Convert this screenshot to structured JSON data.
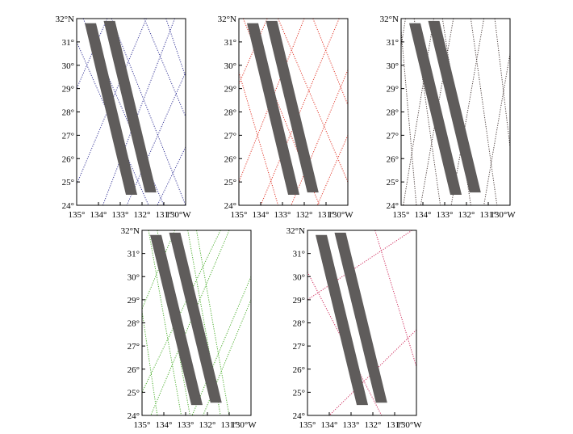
{
  "colors": {
    "swath": "#5f5c5b",
    "frame": "#000000"
  },
  "axes": {
    "lat_range": [
      24,
      32
    ],
    "lon_range": [
      135,
      130
    ],
    "lat_tick_labels": [
      "24°",
      "25°",
      "26°",
      "27°",
      "28°",
      "29°",
      "30°",
      "31°",
      "32°N"
    ],
    "lon_tick_labels": [
      "135°",
      "134°",
      "133°",
      "132°",
      "131°",
      "130°W"
    ]
  },
  "swaths": [
    {
      "name": "swath-west",
      "top": [
        134.37,
        31.8
      ],
      "bottom": [
        132.48,
        24.45
      ]
    },
    {
      "name": "swath-east",
      "top": [
        133.5,
        31.9
      ],
      "bottom": [
        131.6,
        24.55
      ]
    }
  ],
  "panels": [
    {
      "name": "panel-blue",
      "track_color": "#3a3a9a",
      "tracks": [
        [
          [
            135.0,
            31.0
          ],
          [
            131.7,
            24.0
          ]
        ],
        [
          [
            134.7,
            32.0
          ],
          [
            131.0,
            24.0
          ]
        ],
        [
          [
            133.4,
            32.0
          ],
          [
            130.0,
            24.0
          ]
        ],
        [
          [
            131.9,
            32.0
          ],
          [
            130.0,
            27.8
          ]
        ],
        [
          [
            130.9,
            32.0
          ],
          [
            130.0,
            29.5
          ]
        ],
        [
          [
            131.8,
            32.0
          ],
          [
            135.0,
            24.9
          ]
        ],
        [
          [
            130.5,
            32.0
          ],
          [
            133.8,
            24.0
          ]
        ],
        [
          [
            130.0,
            29.7
          ],
          [
            132.7,
            24.0
          ]
        ],
        [
          [
            130.0,
            26.5
          ],
          [
            131.3,
            24.0
          ]
        ],
        [
          [
            133.6,
            32.0
          ],
          [
            135.0,
            29.0
          ]
        ]
      ]
    },
    {
      "name": "panel-red",
      "track_color": "#e23b2e",
      "tracks": [
        [
          [
            135.0,
            29.7
          ],
          [
            133.2,
            24.0
          ]
        ],
        [
          [
            134.8,
            32.0
          ],
          [
            131.3,
            24.0
          ]
        ],
        [
          [
            133.2,
            32.0
          ],
          [
            130.0,
            25.0
          ]
        ],
        [
          [
            131.6,
            32.0
          ],
          [
            130.0,
            28.3
          ]
        ],
        [
          [
            132.0,
            32.0
          ],
          [
            135.0,
            25.0
          ]
        ],
        [
          [
            130.4,
            32.0
          ],
          [
            134.0,
            24.0
          ]
        ],
        [
          [
            130.0,
            29.8
          ],
          [
            132.6,
            24.0
          ]
        ],
        [
          [
            130.0,
            27.0
          ],
          [
            131.4,
            24.0
          ]
        ],
        [
          [
            133.7,
            32.0
          ],
          [
            135.0,
            29.2
          ]
        ]
      ]
    },
    {
      "name": "panel-black",
      "track_color": "#4a3c3a",
      "tracks": [
        [
          [
            135.0,
            31.5
          ],
          [
            134.3,
            24.0
          ]
        ],
        [
          [
            134.4,
            32.0
          ],
          [
            133.2,
            24.0
          ]
        ],
        [
          [
            133.1,
            32.0
          ],
          [
            131.8,
            24.0
          ]
        ],
        [
          [
            131.8,
            32.0
          ],
          [
            130.6,
            24.0
          ]
        ],
        [
          [
            130.7,
            32.0
          ],
          [
            130.0,
            26.5
          ]
        ],
        [
          [
            131.2,
            32.0
          ],
          [
            132.7,
            24.0
          ]
        ],
        [
          [
            130.0,
            30.5
          ],
          [
            131.2,
            24.0
          ]
        ],
        [
          [
            133.5,
            32.0
          ],
          [
            134.9,
            24.0
          ]
        ],
        [
          [
            134.8,
            32.0
          ],
          [
            135.0,
            30.8
          ]
        ],
        [
          [
            132.6,
            32.0
          ],
          [
            134.1,
            24.0
          ]
        ]
      ]
    },
    {
      "name": "panel-green",
      "track_color": "#4caf2e",
      "tracks": [
        [
          [
            134.7,
            32.0
          ],
          [
            133.2,
            24.0
          ]
        ],
        [
          [
            134.3,
            32.0
          ],
          [
            132.8,
            24.0
          ]
        ],
        [
          [
            132.9,
            32.0
          ],
          [
            131.4,
            24.0
          ]
        ],
        [
          [
            132.5,
            32.0
          ],
          [
            131.0,
            24.0
          ]
        ],
        [
          [
            135.0,
            28.5
          ],
          [
            134.3,
            24.0
          ]
        ],
        [
          [
            131.4,
            32.0
          ],
          [
            135.0,
            25.0
          ]
        ],
        [
          [
            131.0,
            32.0
          ],
          [
            134.6,
            24.0
          ]
        ],
        [
          [
            130.0,
            30.0
          ],
          [
            132.7,
            24.0
          ]
        ],
        [
          [
            130.0,
            29.0
          ],
          [
            132.2,
            24.0
          ]
        ],
        [
          [
            133.5,
            32.0
          ],
          [
            135.0,
            28.6
          ]
        ]
      ]
    },
    {
      "name": "panel-crimson",
      "track_color": "#d03060",
      "tracks": [
        [
          [
            135.0,
            30.2
          ],
          [
            131.6,
            24.0
          ]
        ],
        [
          [
            130.2,
            32.0
          ],
          [
            135.0,
            29.0
          ]
        ],
        [
          [
            130.0,
            27.7
          ],
          [
            134.0,
            24.0
          ]
        ],
        [
          [
            131.9,
            32.0
          ],
          [
            130.0,
            26.1
          ]
        ]
      ]
    }
  ]
}
